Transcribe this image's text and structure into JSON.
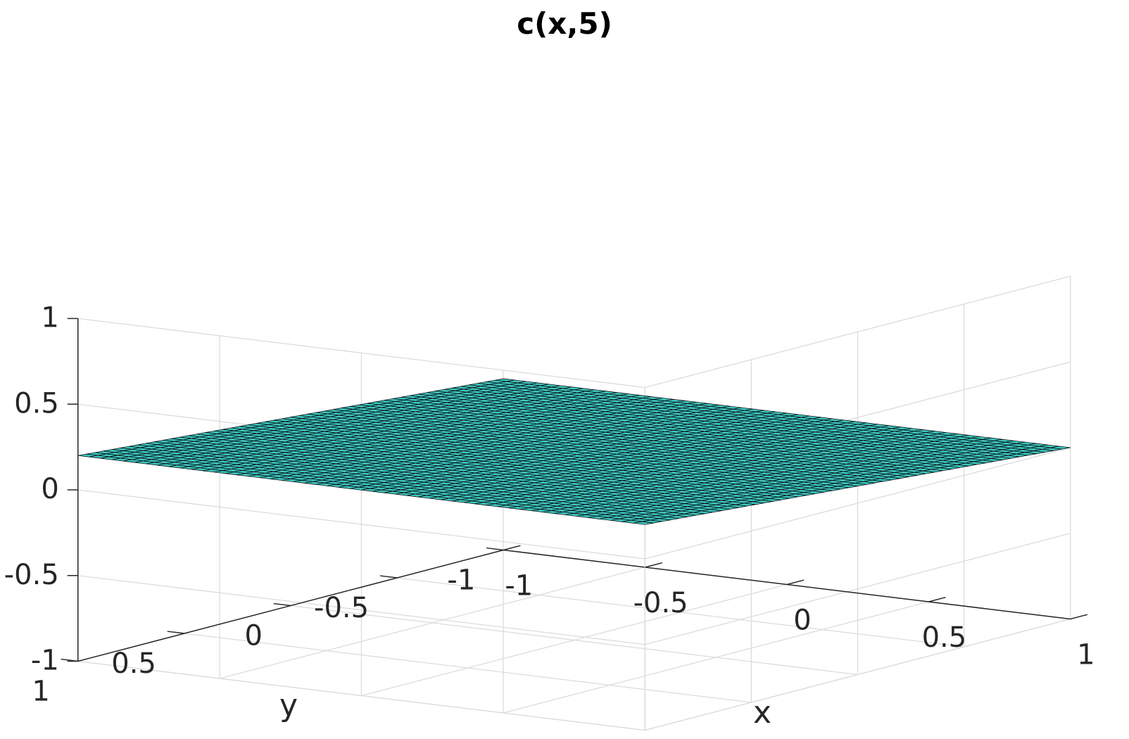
{
  "chart_data": {
    "type": "surface",
    "title": "c(x,5)",
    "xlabel": "x",
    "ylabel": "y",
    "zlabel": "",
    "xlim": [
      -1,
      1
    ],
    "ylim": [
      -1,
      1
    ],
    "zlim": [
      -1,
      1
    ],
    "xticks": [
      -1,
      -0.5,
      0,
      0.5,
      1
    ],
    "yticks": [
      -1,
      -0.5,
      0,
      0.5,
      1
    ],
    "zticks": [
      -1,
      -0.5,
      0,
      0.5,
      1
    ],
    "xtick_labels": [
      "-1",
      "-0.5",
      "0",
      "0.5",
      "1"
    ],
    "ytick_labels": [
      "-1",
      "-0.5",
      "0",
      "0.5",
      "1"
    ],
    "ztick_labels": [
      "-1",
      "-0.5",
      "0",
      "0.5",
      "1"
    ],
    "grid": true,
    "surface": {
      "description_value": "plane",
      "z_corners": {
        "x_-1_y_-1": 0.0,
        "x_1_y_-1": 0.0,
        "x_-1_y_1": 0.2,
        "x_1_y_1": 0.2
      },
      "mesh_n": 50,
      "face_color": "#3ec6c0",
      "edge_color": "#000000"
    }
  }
}
